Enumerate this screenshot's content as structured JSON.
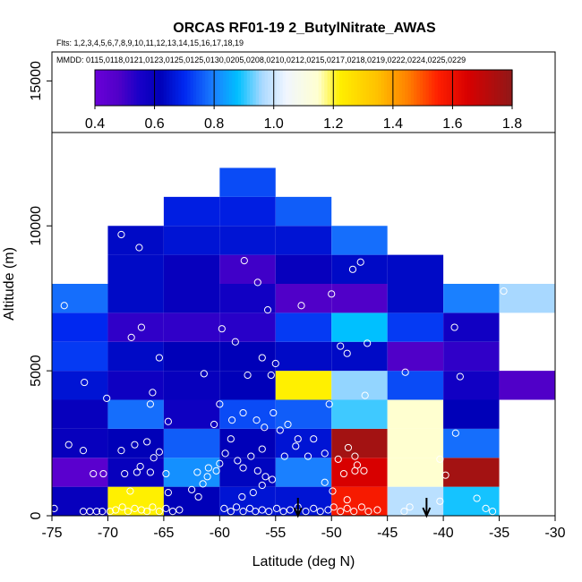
{
  "chart_data": {
    "type": "heatmap",
    "title": "ORCAS RF01-19 2_ButylNitrate_AWAS",
    "flights_label": "Flts: 1,2,3,4,5,6,7,8,9,10,11,12,13,14,15,16,17,18,19",
    "dates_label": "MMDD: 0115,0118,0121,0123,0125,0125,0130,0205,0208,0210,0212,0215,0217,0218,0219,0222,0224,0225,0229",
    "xlabel": "Latitude (deg N)",
    "ylabel": "Altitude (m)",
    "xlim": [
      -75,
      -30
    ],
    "ylim": [
      0,
      16000
    ],
    "xticks": [
      -75,
      -70,
      -65,
      -60,
      -55,
      -50,
      -45,
      -40,
      -35,
      -30
    ],
    "yticks": [
      0,
      5000,
      10000,
      15000
    ],
    "bin_width_deg": 5,
    "bin_height_m": 1000,
    "colorbar": {
      "min": 0.4,
      "max": 1.8,
      "ticks": [
        0.4,
        0.6,
        0.8,
        1.0,
        1.2,
        1.4,
        1.6,
        1.8
      ],
      "stops": [
        {
          "v": 0.4,
          "c": "#6a00d8"
        },
        {
          "v": 0.48,
          "c": "#5000c8"
        },
        {
          "v": 0.55,
          "c": "#1800c8"
        },
        {
          "v": 0.62,
          "c": "#0000b8"
        },
        {
          "v": 0.7,
          "c": "#0028f0"
        },
        {
          "v": 0.8,
          "c": "#1a80ff"
        },
        {
          "v": 0.88,
          "c": "#00c0ff"
        },
        {
          "v": 0.96,
          "c": "#a8d8ff"
        },
        {
          "v": 1.04,
          "c": "#f0f6ff"
        },
        {
          "v": 1.15,
          "c": "#ffffd0"
        },
        {
          "v": 1.22,
          "c": "#fff000"
        },
        {
          "v": 1.35,
          "c": "#ffc000"
        },
        {
          "v": 1.45,
          "c": "#ff8000"
        },
        {
          "v": 1.55,
          "c": "#ff2000"
        },
        {
          "v": 1.65,
          "c": "#d80000"
        },
        {
          "v": 1.8,
          "c": "#901818"
        }
      ]
    },
    "cells": [
      {
        "x0": -75,
        "y0": 0,
        "v": 0.6
      },
      {
        "x0": -70,
        "y0": 0,
        "v": 1.22
      },
      {
        "x0": -65,
        "y0": 0,
        "v": 0.62
      },
      {
        "x0": -60,
        "y0": 0,
        "v": 0.66
      },
      {
        "x0": -55,
        "y0": 0,
        "v": 0.66
      },
      {
        "x0": -50,
        "y0": 0,
        "v": 1.57
      },
      {
        "x0": -45,
        "y0": 0,
        "v": 0.98
      },
      {
        "x0": -40,
        "y0": 0,
        "v": 0.89
      },
      {
        "x0": -75,
        "y0": 1000,
        "v": 0.45
      },
      {
        "x0": -70,
        "y0": 1000,
        "v": 0.6
      },
      {
        "x0": -65,
        "y0": 1000,
        "v": 0.82
      },
      {
        "x0": -60,
        "y0": 1000,
        "v": 0.63
      },
      {
        "x0": -55,
        "y0": 1000,
        "v": 0.8
      },
      {
        "x0": -50,
        "y0": 1000,
        "v": 1.65
      },
      {
        "x0": -45,
        "y0": 1000,
        "v": 1.15
      },
      {
        "x0": -40,
        "y0": 1000,
        "v": 1.76
      },
      {
        "x0": -75,
        "y0": 2000,
        "v": 0.6
      },
      {
        "x0": -70,
        "y0": 2000,
        "v": 0.62
      },
      {
        "x0": -65,
        "y0": 2000,
        "v": 0.76
      },
      {
        "x0": -60,
        "y0": 2000,
        "v": 0.62
      },
      {
        "x0": -55,
        "y0": 2000,
        "v": 0.66
      },
      {
        "x0": -50,
        "y0": 2000,
        "v": 1.76
      },
      {
        "x0": -45,
        "y0": 2000,
        "v": 1.15
      },
      {
        "x0": -40,
        "y0": 2000,
        "v": 0.78
      },
      {
        "x0": -75,
        "y0": 3000,
        "v": 0.6
      },
      {
        "x0": -70,
        "y0": 3000,
        "v": 0.78
      },
      {
        "x0": -65,
        "y0": 3000,
        "v": 0.58
      },
      {
        "x0": -60,
        "y0": 3000,
        "v": 0.74
      },
      {
        "x0": -55,
        "y0": 3000,
        "v": 0.76
      },
      {
        "x0": -50,
        "y0": 3000,
        "v": 0.91
      },
      {
        "x0": -45,
        "y0": 3000,
        "v": 1.15
      },
      {
        "x0": -40,
        "y0": 3000,
        "v": 0.62
      },
      {
        "x0": -75,
        "y0": 4000,
        "v": 0.66
      },
      {
        "x0": -70,
        "y0": 4000,
        "v": 0.58
      },
      {
        "x0": -65,
        "y0": 4000,
        "v": 0.6
      },
      {
        "x0": -60,
        "y0": 4000,
        "v": 0.62
      },
      {
        "x0": -55,
        "y0": 4000,
        "v": 1.22
      },
      {
        "x0": -50,
        "y0": 4000,
        "v": 0.95
      },
      {
        "x0": -45,
        "y0": 4000,
        "v": 0.74
      },
      {
        "x0": -40,
        "y0": 4000,
        "v": 0.57
      },
      {
        "x0": -35,
        "y0": 4000,
        "v": 0.48
      },
      {
        "x0": -75,
        "y0": 5000,
        "v": 0.72
      },
      {
        "x0": -70,
        "y0": 5000,
        "v": 0.64
      },
      {
        "x0": -65,
        "y0": 5000,
        "v": 0.62
      },
      {
        "x0": -60,
        "y0": 5000,
        "v": 0.62
      },
      {
        "x0": -55,
        "y0": 5000,
        "v": 0.64
      },
      {
        "x0": -50,
        "y0": 5000,
        "v": 0.64
      },
      {
        "x0": -45,
        "y0": 5000,
        "v": 0.48
      },
      {
        "x0": -40,
        "y0": 5000,
        "v": 0.52
      },
      {
        "x0": -75,
        "y0": 6000,
        "v": 0.7
      },
      {
        "x0": -70,
        "y0": 6000,
        "v": 0.52
      },
      {
        "x0": -65,
        "y0": 6000,
        "v": 0.52
      },
      {
        "x0": -60,
        "y0": 6000,
        "v": 0.53
      },
      {
        "x0": -55,
        "y0": 6000,
        "v": 0.72
      },
      {
        "x0": -50,
        "y0": 6000,
        "v": 0.88
      },
      {
        "x0": -45,
        "y0": 6000,
        "v": 0.72
      },
      {
        "x0": -40,
        "y0": 6000,
        "v": 0.57
      },
      {
        "x0": -75,
        "y0": 7000,
        "v": 0.78
      },
      {
        "x0": -70,
        "y0": 7000,
        "v": 0.64
      },
      {
        "x0": -65,
        "y0": 7000,
        "v": 0.6
      },
      {
        "x0": -60,
        "y0": 7000,
        "v": 0.57
      },
      {
        "x0": -55,
        "y0": 7000,
        "v": 0.48
      },
      {
        "x0": -50,
        "y0": 7000,
        "v": 0.48
      },
      {
        "x0": -45,
        "y0": 7000,
        "v": 0.64
      },
      {
        "x0": -40,
        "y0": 7000,
        "v": 0.8
      },
      {
        "x0": -35,
        "y0": 7000,
        "v": 0.96
      },
      {
        "x0": -70,
        "y0": 8000,
        "v": 0.64
      },
      {
        "x0": -65,
        "y0": 8000,
        "v": 0.6
      },
      {
        "x0": -60,
        "y0": 8000,
        "v": 0.5
      },
      {
        "x0": -55,
        "y0": 8000,
        "v": 0.6
      },
      {
        "x0": -50,
        "y0": 8000,
        "v": 0.64
      },
      {
        "x0": -45,
        "y0": 8000,
        "v": 0.64
      },
      {
        "x0": -70,
        "y0": 9000,
        "v": 0.64
      },
      {
        "x0": -65,
        "y0": 9000,
        "v": 0.66
      },
      {
        "x0": -60,
        "y0": 9000,
        "v": 0.66
      },
      {
        "x0": -55,
        "y0": 9000,
        "v": 0.66
      },
      {
        "x0": -50,
        "y0": 9000,
        "v": 0.78
      },
      {
        "x0": -65,
        "y0": 10000,
        "v": 0.68
      },
      {
        "x0": -60,
        "y0": 10000,
        "v": 0.68
      },
      {
        "x0": -55,
        "y0": 10000,
        "v": 0.76
      },
      {
        "x0": -60,
        "y0": 11000,
        "v": 0.74
      }
    ],
    "points": [
      [
        -74.8,
        250
      ],
      [
        -73.5,
        2450
      ],
      [
        -72.2,
        2250
      ],
      [
        -71.3,
        1450
      ],
      [
        -70.4,
        1450
      ],
      [
        -70.1,
        4050
      ],
      [
        -72.1,
        4600
      ],
      [
        -73.9,
        7250
      ],
      [
        -68.8,
        9700
      ],
      [
        -67.2,
        9250
      ],
      [
        -67.0,
        6500
      ],
      [
        -67.9,
        6150
      ],
      [
        -65.4,
        5450
      ],
      [
        -66.0,
        4250
      ],
      [
        -66.2,
        3850
      ],
      [
        -64.6,
        3250
      ],
      [
        -67.6,
        2450
      ],
      [
        -66.5,
        2550
      ],
      [
        -65.4,
        2200
      ],
      [
        -68.8,
        2250
      ],
      [
        -68.5,
        1450
      ],
      [
        -67.4,
        1500
      ],
      [
        -66.2,
        1500
      ],
      [
        -64.8,
        1450
      ],
      [
        -67.1,
        1700
      ],
      [
        -65.9,
        2000
      ],
      [
        -68.0,
        850
      ],
      [
        -64.6,
        800
      ],
      [
        -72.2,
        150
      ],
      [
        -71.6,
        150
      ],
      [
        -71.0,
        150
      ],
      [
        -70.5,
        150
      ],
      [
        -69.8,
        150
      ],
      [
        -69.3,
        200
      ],
      [
        -68.7,
        300
      ],
      [
        -68.2,
        150
      ],
      [
        -67.6,
        250
      ],
      [
        -67.0,
        200
      ],
      [
        -66.5,
        150
      ],
      [
        -66.0,
        300
      ],
      [
        -65.4,
        150
      ],
      [
        -64.8,
        250
      ],
      [
        -64.2,
        150
      ],
      [
        -63.6,
        200
      ],
      [
        -62.5,
        900
      ],
      [
        -61.9,
        650
      ],
      [
        -61.5,
        1100
      ],
      [
        -62.0,
        1500
      ],
      [
        -61.1,
        1350
      ],
      [
        -61.0,
        1650
      ],
      [
        -60.3,
        1550
      ],
      [
        -60.0,
        1800
      ],
      [
        -59.5,
        2150
      ],
      [
        -59.0,
        2650
      ],
      [
        -60.5,
        3150
      ],
      [
        -58.9,
        3300
      ],
      [
        -60.0,
        3850
      ],
      [
        -61.4,
        4900
      ],
      [
        -58.6,
        6000
      ],
      [
        -59.8,
        6450
      ],
      [
        -57.8,
        8800
      ],
      [
        -56.6,
        8050
      ],
      [
        -55.7,
        7100
      ],
      [
        -55.4,
        4850
      ],
      [
        -55.0,
        5250
      ],
      [
        -56.2,
        5450
      ],
      [
        -57.5,
        4850
      ],
      [
        -57.9,
        3550
      ],
      [
        -56.7,
        3300
      ],
      [
        -55.2,
        3550
      ],
      [
        -53.9,
        3150
      ],
      [
        -56.0,
        3050
      ],
      [
        -54.6,
        2950
      ],
      [
        -53.0,
        2650
      ],
      [
        -51.6,
        2650
      ],
      [
        -53.2,
        2400
      ],
      [
        -54.2,
        2050
      ],
      [
        -52.1,
        2050
      ],
      [
        -56.2,
        2300
      ],
      [
        -57.2,
        2050
      ],
      [
        -58.4,
        1900
      ],
      [
        -57.9,
        1650
      ],
      [
        -56.6,
        1550
      ],
      [
        -55.9,
        1350
      ],
      [
        -55.3,
        1250
      ],
      [
        -56.2,
        1050
      ],
      [
        -57.0,
        800
      ],
      [
        -58.0,
        650
      ],
      [
        -59.6,
        250
      ],
      [
        -59.0,
        150
      ],
      [
        -58.5,
        300
      ],
      [
        -57.9,
        150
      ],
      [
        -57.3,
        250
      ],
      [
        -56.8,
        150
      ],
      [
        -56.2,
        200
      ],
      [
        -55.6,
        150
      ],
      [
        -54.9,
        250
      ],
      [
        -54.3,
        150
      ],
      [
        -53.7,
        200
      ],
      [
        -53.0,
        300
      ],
      [
        -52.3,
        150
      ],
      [
        -51.6,
        250
      ],
      [
        -51.0,
        150
      ],
      [
        -50.3,
        200
      ],
      [
        -49.8,
        300
      ],
      [
        -49.2,
        150
      ],
      [
        -48.6,
        250
      ],
      [
        -48.0,
        150
      ],
      [
        -47.3,
        300
      ],
      [
        -46.7,
        150
      ],
      [
        -45.9,
        200
      ],
      [
        -48.6,
        550
      ],
      [
        -49.9,
        850
      ],
      [
        -50.6,
        1150
      ],
      [
        -48.9,
        1450
      ],
      [
        -47.9,
        1550
      ],
      [
        -47.1,
        1550
      ],
      [
        -47.7,
        1750
      ],
      [
        -49.4,
        1950
      ],
      [
        -47.9,
        2050
      ],
      [
        -48.5,
        2350
      ],
      [
        -50.6,
        2150
      ],
      [
        -50.2,
        3850
      ],
      [
        -47.0,
        4150
      ],
      [
        -49.2,
        5850
      ],
      [
        -46.8,
        5950
      ],
      [
        -48.6,
        5600
      ],
      [
        -50.0,
        7650
      ],
      [
        -52.7,
        7250
      ],
      [
        -47.4,
        8750
      ],
      [
        -48.1,
        8500
      ],
      [
        -43.4,
        4950
      ],
      [
        -40.3,
        500
      ],
      [
        -38.9,
        2850
      ],
      [
        -39.0,
        6500
      ],
      [
        -38.5,
        4800
      ],
      [
        -39.8,
        1400
      ],
      [
        -40.3,
        1950
      ],
      [
        -37.0,
        600
      ],
      [
        -36.2,
        250
      ],
      [
        -35.6,
        150
      ],
      [
        -34.6,
        7750
      ],
      [
        -43.5,
        150
      ],
      [
        -43.0,
        300
      ]
    ],
    "arrows_lat": [
      -53.0,
      -41.5
    ]
  }
}
